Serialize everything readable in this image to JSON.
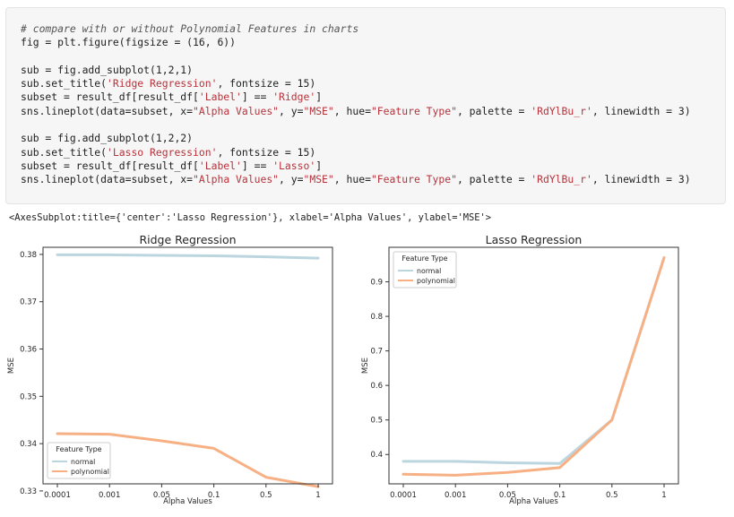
{
  "code_cell": {
    "lines": [
      [
        {
          "t": "# compare with or without Polynomial Features in charts",
          "c": "cmt"
        }
      ],
      [
        {
          "t": "fig = plt.figure(figsize = (16, 6))",
          "c": ""
        }
      ],
      [
        {
          "t": "",
          "c": ""
        }
      ],
      [
        {
          "t": "sub = fig.add_subplot(1,2,1)",
          "c": ""
        }
      ],
      [
        {
          "t": "sub.set_title(",
          "c": ""
        },
        {
          "t": "'Ridge Regression'",
          "c": "str"
        },
        {
          "t": ", fontsize = 15)",
          "c": ""
        }
      ],
      [
        {
          "t": "subset = result_df[result_df[",
          "c": ""
        },
        {
          "t": "'Label'",
          "c": "str"
        },
        {
          "t": "] == ",
          "c": ""
        },
        {
          "t": "'Ridge'",
          "c": "str"
        },
        {
          "t": "]",
          "c": ""
        }
      ],
      [
        {
          "t": "sns.lineplot(data=subset, x=",
          "c": ""
        },
        {
          "t": "\"Alpha Values\"",
          "c": "str"
        },
        {
          "t": ", y=",
          "c": ""
        },
        {
          "t": "\"MSE\"",
          "c": "str"
        },
        {
          "t": ", hue=",
          "c": ""
        },
        {
          "t": "\"Feature Type\"",
          "c": "str"
        },
        {
          "t": ", palette = ",
          "c": ""
        },
        {
          "t": "'RdYlBu_r'",
          "c": "str"
        },
        {
          "t": ", linewidth = 3)",
          "c": ""
        }
      ],
      [
        {
          "t": "",
          "c": ""
        }
      ],
      [
        {
          "t": "sub = fig.add_subplot(1,2,2)",
          "c": ""
        }
      ],
      [
        {
          "t": "sub.set_title(",
          "c": ""
        },
        {
          "t": "'Lasso Regression'",
          "c": "str"
        },
        {
          "t": ", fontsize = 15)",
          "c": ""
        }
      ],
      [
        {
          "t": "subset = result_df[result_df[",
          "c": ""
        },
        {
          "t": "'Label'",
          "c": "str"
        },
        {
          "t": "] == ",
          "c": ""
        },
        {
          "t": "'Lasso'",
          "c": "str"
        },
        {
          "t": "]",
          "c": ""
        }
      ],
      [
        {
          "t": "sns.lineplot(data=subset, x=",
          "c": ""
        },
        {
          "t": "\"Alpha Values\"",
          "c": "str"
        },
        {
          "t": ", y=",
          "c": ""
        },
        {
          "t": "\"MSE\"",
          "c": "str"
        },
        {
          "t": ", hue=",
          "c": ""
        },
        {
          "t": "\"Feature Type\"",
          "c": "str"
        },
        {
          "t": ", palette = ",
          "c": ""
        },
        {
          "t": "'RdYlBu_r'",
          "c": "str"
        },
        {
          "t": ", linewidth = 3)",
          "c": ""
        }
      ]
    ]
  },
  "output_text": "<AxesSubplot:title={'center':'Lasso Regression'}, xlabel='Alpha Values', ylabel='MSE'>",
  "colors": {
    "normal": "#bcd6e0",
    "polynomial": "#f7b084",
    "axes": "#333333"
  },
  "chart_data": [
    {
      "type": "line",
      "title": "Ridge Regression",
      "xlabel": "Alpha Values",
      "ylabel": "MSE",
      "categories": [
        "0.0001",
        "0.001",
        "0.05",
        "0.1",
        "0.5",
        "1"
      ],
      "ylim": [
        0.3315,
        0.3815
      ],
      "yticks": [
        0.33,
        0.34,
        0.35,
        0.36,
        0.37,
        0.38
      ],
      "yticklabels": [
        "0.33",
        "0.34",
        "0.35",
        "0.36",
        "0.37",
        "0.38"
      ],
      "legend": {
        "title": "Feature Type",
        "position": "lower-left"
      },
      "series": [
        {
          "name": "normal",
          "values": [
            0.3799,
            0.3799,
            0.3798,
            0.3797,
            0.3795,
            0.3792
          ]
        },
        {
          "name": "polynomial",
          "values": [
            0.3421,
            0.342,
            0.3406,
            0.339,
            0.3329,
            0.3309
          ]
        }
      ],
      "grid": false
    },
    {
      "type": "line",
      "title": "Lasso Regression",
      "xlabel": "Alpha Values",
      "ylabel": "MSE",
      "categories": [
        "0.0001",
        "0.001",
        "0.05",
        "0.1",
        "0.5",
        "1"
      ],
      "ylim": [
        0.315,
        1.0
      ],
      "yticks": [
        0.4,
        0.5,
        0.6,
        0.7,
        0.8,
        0.9
      ],
      "yticklabels": [
        "0.4",
        "0.5",
        "0.6",
        "0.7",
        "0.8",
        "0.9"
      ],
      "legend": {
        "title": "Feature Type",
        "position": "upper-left"
      },
      "series": [
        {
          "name": "normal",
          "values": [
            0.38,
            0.38,
            0.376,
            0.374,
            0.5,
            0.97
          ]
        },
        {
          "name": "polynomial",
          "values": [
            0.343,
            0.34,
            0.348,
            0.362,
            0.5,
            0.97
          ]
        }
      ],
      "grid": false
    }
  ]
}
